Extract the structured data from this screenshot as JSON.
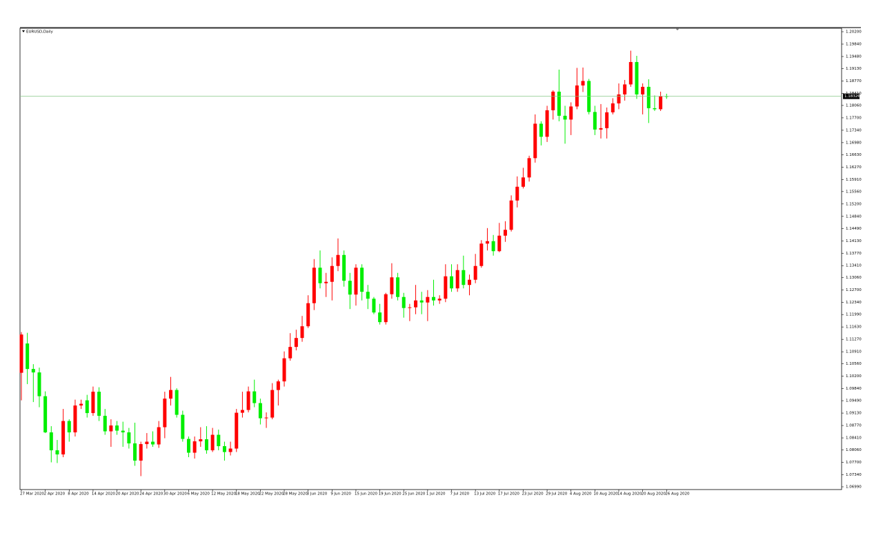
{
  "chart_data": {
    "type": "candlestick",
    "title": "EURUSD,Daily",
    "up_color": "#ff0000",
    "down_color": "#00ee00",
    "current_price": 1.18326,
    "current_price_color": "#88c888",
    "ylim": [
      1.0691,
      1.203
    ],
    "yticks": [
      {
        "value": 1.202,
        "label": "1.20200"
      },
      {
        "value": 1.1984,
        "label": "1.19840"
      },
      {
        "value": 1.1948,
        "label": "1.19480"
      },
      {
        "value": 1.1913,
        "label": "1.19130"
      },
      {
        "value": 1.1877,
        "label": "1.18770"
      },
      {
        "value": 1.1841,
        "label": "1.18410"
      },
      {
        "value": 1.1806,
        "label": "1.18060"
      },
      {
        "value": 1.177,
        "label": "1.17700"
      },
      {
        "value": 1.1734,
        "label": "1.17340"
      },
      {
        "value": 1.1698,
        "label": "1.16980"
      },
      {
        "value": 1.1663,
        "label": "1.16630"
      },
      {
        "value": 1.1627,
        "label": "1.16270"
      },
      {
        "value": 1.1591,
        "label": "1.15910"
      },
      {
        "value": 1.1556,
        "label": "1.15560"
      },
      {
        "value": 1.152,
        "label": "1.15200"
      },
      {
        "value": 1.1484,
        "label": "1.14840"
      },
      {
        "value": 1.1449,
        "label": "1.14490"
      },
      {
        "value": 1.1413,
        "label": "1.14130"
      },
      {
        "value": 1.1377,
        "label": "1.13770"
      },
      {
        "value": 1.1341,
        "label": "1.13410"
      },
      {
        "value": 1.1306,
        "label": "1.13060"
      },
      {
        "value": 1.127,
        "label": "1.12700"
      },
      {
        "value": 1.1234,
        "label": "1.12340"
      },
      {
        "value": 1.1199,
        "label": "1.11990"
      },
      {
        "value": 1.1163,
        "label": "1.11630"
      },
      {
        "value": 1.1127,
        "label": "1.11270"
      },
      {
        "value": 1.1091,
        "label": "1.10910"
      },
      {
        "value": 1.1056,
        "label": "1.10560"
      },
      {
        "value": 1.102,
        "label": "1.10200"
      },
      {
        "value": 1.0984,
        "label": "1.09840"
      },
      {
        "value": 1.0949,
        "label": "1.09490"
      },
      {
        "value": 1.0913,
        "label": "1.09130"
      },
      {
        "value": 1.0877,
        "label": "1.08770"
      },
      {
        "value": 1.0841,
        "label": "1.08410"
      },
      {
        "value": 1.0806,
        "label": "1.08060"
      },
      {
        "value": 1.077,
        "label": "1.07700"
      },
      {
        "value": 1.0734,
        "label": "1.07340"
      },
      {
        "value": 1.0699,
        "label": "1.06990"
      }
    ],
    "categories": [
      "27 Mar 2020",
      null,
      null,
      null,
      "2 Apr 2020",
      null,
      null,
      null,
      "8 Apr 2020",
      null,
      null,
      null,
      "14 Apr 2020",
      null,
      null,
      null,
      "20 Apr 2020",
      null,
      null,
      null,
      "24 Apr 2020",
      null,
      null,
      null,
      "30 Apr 2020",
      null,
      null,
      null,
      "6 May 2020",
      null,
      null,
      null,
      "12 May 2020",
      null,
      null,
      null,
      "18 May 2020",
      null,
      null,
      null,
      "22 May 2020",
      null,
      null,
      null,
      "28 May 2020",
      null,
      null,
      null,
      "3 Jun 2020",
      null,
      null,
      null,
      "9 Jun 2020",
      null,
      null,
      null,
      "15 Jun 2020",
      null,
      null,
      null,
      "19 Jun 2020",
      null,
      null,
      null,
      "25 Jun 2020",
      null,
      null,
      null,
      "1 Jul 2020",
      null,
      null,
      null,
      "7 Jul 2020",
      null,
      null,
      null,
      "13 Jul 2020",
      null,
      null,
      null,
      "17 Jul 2020",
      null,
      null,
      null,
      "23 Jul 2020",
      null,
      null,
      null,
      "29 Jul 2020",
      null,
      null,
      null,
      "4 Aug 2020",
      null,
      null,
      null,
      "10 Aug 2020",
      null,
      null,
      null,
      "14 Aug 2020",
      null,
      null,
      null,
      "20 Aug 2020",
      null,
      null,
      null,
      "26 Aug 2020"
    ],
    "open": [
      1.103,
      1.1115,
      1.1041,
      1.1031,
      1.0962,
      1.0857,
      1.0805,
      1.0793,
      1.089,
      1.0857,
      1.0935,
      1.095,
      1.0913,
      1.0975,
      1.0905,
      1.086,
      1.0877,
      1.0862,
      1.0857,
      1.0825,
      1.0775,
      1.0823,
      1.083,
      1.0822,
      1.0872,
      1.0955,
      1.098,
      1.0908,
      1.0838,
      1.0798,
      1.0831,
      1.0837,
      1.0805,
      1.085,
      1.0817,
      1.08,
      1.081,
      1.0914,
      1.0922,
      1.0976,
      1.0942,
      1.0898,
      1.09,
      1.098,
      1.1005,
      1.1072,
      1.1105,
      1.1131,
      1.1165,
      1.1232,
      1.1335,
      1.129,
      1.1294,
      1.134,
      1.1372,
      1.1297,
      1.1257,
      1.1335,
      1.1265,
      1.1245,
      1.1205,
      1.1177,
      1.1258,
      1.1307,
      1.125,
      1.1218,
      1.122,
      1.124,
      1.1234,
      1.125,
      1.124,
      1.1245,
      1.131,
      1.1275,
      1.1328,
      1.1285,
      1.13,
      1.134,
      1.1405,
      1.1412,
      1.1383,
      1.1428,
      1.1445,
      1.153,
      1.157,
      1.1597,
      1.1653,
      1.1753,
      1.1715,
      1.1792,
      1.1846,
      1.1776,
      1.1765,
      1.1803,
      1.1864,
      1.1877,
      1.1787,
      1.1736,
      1.174,
      1.1786,
      1.1812,
      1.1838,
      1.1867,
      1.1932,
      1.1838,
      1.186,
      1.1798,
      1.1795,
      1.1833
    ],
    "high": [
      1.1148,
      1.1146,
      1.1055,
      1.1045,
      1.0976,
      1.0875,
      1.0835,
      1.0925,
      1.0895,
      1.0952,
      1.0952,
      1.0966,
      1.099,
      1.0988,
      1.0925,
      1.0895,
      1.089,
      1.0888,
      1.087,
      1.0885,
      1.083,
      1.0855,
      1.086,
      1.089,
      1.0975,
      1.1018,
      1.0985,
      1.092,
      1.0845,
      1.0845,
      1.0872,
      1.0875,
      1.087,
      1.0865,
      1.083,
      1.083,
      1.0925,
      1.0975,
      1.099,
      1.101,
      1.0955,
      1.0915,
      1.1,
      1.101,
      1.1092,
      1.1145,
      1.1155,
      1.1195,
      1.1255,
      1.136,
      1.1385,
      1.132,
      1.1365,
      1.142,
      1.1385,
      1.132,
      1.1345,
      1.1345,
      1.1285,
      1.125,
      1.123,
      1.1262,
      1.1348,
      1.132,
      1.1262,
      1.123,
      1.1285,
      1.1265,
      1.127,
      1.13,
      1.1255,
      1.1345,
      1.1345,
      1.1345,
      1.137,
      1.1315,
      1.1375,
      1.1415,
      1.145,
      1.143,
      1.1465,
      1.147,
      1.1545,
      1.16,
      1.1625,
      1.166,
      1.178,
      1.176,
      1.1805,
      1.185,
      1.191,
      1.1805,
      1.1815,
      1.1915,
      1.1916,
      1.1883,
      1.1805,
      1.181,
      1.18,
      1.1827,
      1.187,
      1.188,
      1.1965,
      1.195,
      1.187,
      1.1882,
      1.1835,
      1.1846,
      1.184
    ],
    "low": [
      1.095,
      1.0997,
      1.0945,
      1.093,
      1.0855,
      1.077,
      1.0768,
      1.0785,
      1.083,
      1.0845,
      1.0925,
      1.09,
      1.0905,
      1.089,
      1.085,
      1.0815,
      1.085,
      1.0815,
      1.081,
      1.076,
      1.073,
      1.081,
      1.0815,
      1.0812,
      1.084,
      1.0935,
      1.09,
      1.083,
      1.0785,
      1.0781,
      1.0815,
      1.0795,
      1.08,
      1.0805,
      1.0775,
      1.079,
      1.08,
      1.09,
      1.0915,
      1.093,
      1.088,
      1.087,
      1.0895,
      1.0935,
      1.099,
      1.1065,
      1.1095,
      1.112,
      1.116,
      1.1212,
      1.1275,
      1.125,
      1.124,
      1.1325,
      1.128,
      1.1215,
      1.1225,
      1.124,
      1.1215,
      1.12,
      1.117,
      1.117,
      1.1245,
      1.124,
      1.119,
      1.118,
      1.12,
      1.12,
      1.118,
      1.1225,
      1.123,
      1.1235,
      1.1265,
      1.1265,
      1.1275,
      1.1255,
      1.129,
      1.1335,
      1.1385,
      1.137,
      1.138,
      1.141,
      1.144,
      1.151,
      1.1565,
      1.1585,
      1.164,
      1.169,
      1.17,
      1.1765,
      1.176,
      1.1695,
      1.172,
      1.1795,
      1.1845,
      1.178,
      1.172,
      1.171,
      1.171,
      1.178,
      1.1795,
      1.182,
      1.186,
      1.1825,
      1.178,
      1.1755,
      1.179,
      1.179,
      1.1825
    ],
    "close": [
      1.1141,
      1.1041,
      1.1031,
      1.0962,
      1.0857,
      1.0805,
      1.0793,
      1.089,
      1.0857,
      1.0935,
      1.094,
      1.0913,
      1.0975,
      1.0905,
      1.086,
      1.0877,
      1.0862,
      1.0857,
      1.0825,
      1.0775,
      1.0823,
      1.083,
      1.0822,
      1.0872,
      1.0955,
      1.098,
      1.0908,
      1.0838,
      1.0798,
      1.0831,
      1.0837,
      1.0805,
      1.085,
      1.0817,
      1.08,
      1.081,
      1.0914,
      1.0922,
      1.0976,
      1.0942,
      1.0898,
      1.09,
      1.098,
      1.1005,
      1.1072,
      1.1105,
      1.1131,
      1.1165,
      1.1232,
      1.1335,
      1.129,
      1.1294,
      1.134,
      1.1372,
      1.1297,
      1.1257,
      1.1335,
      1.1265,
      1.1245,
      1.1205,
      1.1177,
      1.1258,
      1.1307,
      1.125,
      1.1218,
      1.122,
      1.124,
      1.1234,
      1.125,
      1.124,
      1.1245,
      1.131,
      1.1275,
      1.1328,
      1.1285,
      1.13,
      1.134,
      1.1405,
      1.1412,
      1.1383,
      1.1428,
      1.1445,
      1.153,
      1.157,
      1.1597,
      1.1653,
      1.1753,
      1.1715,
      1.1792,
      1.1846,
      1.1776,
      1.1765,
      1.1803,
      1.1864,
      1.1877,
      1.1787,
      1.1736,
      1.174,
      1.1786,
      1.1812,
      1.1838,
      1.1867,
      1.1932,
      1.1838,
      1.186,
      1.1798,
      1.1795,
      1.1833,
      1.18326
    ]
  }
}
